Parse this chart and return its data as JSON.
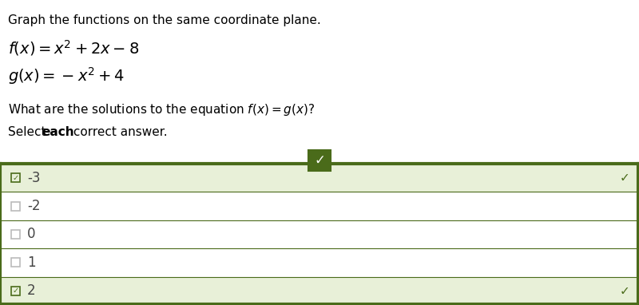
{
  "title_text": "Graph the functions on the same coordinate plane.",
  "options": [
    "-3",
    "-2",
    "0",
    "1",
    "2"
  ],
  "correct_options": [
    0,
    4
  ],
  "bg_color": "#ffffff",
  "row_correct_bg": "#e8f0d8",
  "row_normal_bg": "#ffffff",
  "border_color": "#4a6b1a",
  "check_bg_color": "#4a6b1a",
  "check_color": "#ffffff",
  "text_color": "#000000",
  "option_text_color": "#444444",
  "checkbox_color": "#bbbbbb",
  "fig_width": 8.0,
  "fig_height": 3.82,
  "dpi": 100
}
